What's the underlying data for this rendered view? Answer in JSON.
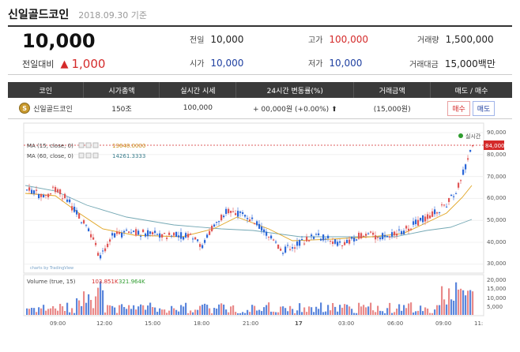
{
  "header": {
    "coin_name": "신일골드코인",
    "date": "2018.09.30 기준"
  },
  "price": {
    "current": "10,000",
    "change_label": "전일대비",
    "change_value": "1,000"
  },
  "stats": [
    {
      "label": "전일",
      "value": "10,000",
      "color": "plain"
    },
    {
      "label": "고가",
      "value": "100,000",
      "color": "red"
    },
    {
      "label": "거래량",
      "value": "1,500,000",
      "color": "plain"
    },
    {
      "label": "시가",
      "value": "10,000",
      "color": "blue"
    },
    {
      "label": "저가",
      "value": "10,000",
      "color": "blue"
    },
    {
      "label": "거래대금",
      "value": "15,000백만",
      "color": "plain"
    }
  ],
  "table": {
    "headers": [
      "코인",
      "시가총액",
      "실시간 시세",
      "24시간 변동률(%)",
      "거래금액",
      "매도 / 매수"
    ],
    "row": {
      "coin": "신일골드코인",
      "market_cap": "150조",
      "realtime": "100,000",
      "change": "+ 00,000원 (+0.00%)",
      "volume": "(15,000원)",
      "buy": "매수",
      "sell": "매도"
    }
  },
  "chart": {
    "legend_realtime": "실시간",
    "current_tag": "84,000",
    "ma15_label": "MA (15, close, 0)",
    "ma15_value": "13648.0000",
    "ma60_label": "MA (60, close, 0)",
    "ma60_value": "14261.3333",
    "volume_label": "Volume (true, 15)",
    "volume_v1": "103.851K",
    "volume_v2": "321.964K",
    "watermark": "charts by TradingView",
    "y_ticks": [
      "90,000",
      "80,000",
      "70,000",
      "60,000",
      "50,000",
      "40,000",
      "30,000"
    ],
    "vol_ticks": [
      "20,000",
      "15,000",
      "10,000",
      "5,000"
    ],
    "x_ticks": [
      "09:00",
      "12:00",
      "15:00",
      "18:00",
      "21:00",
      "17",
      "03:00",
      "06:00",
      "09:00",
      "11:"
    ]
  },
  "colors": {
    "up": "#e05555",
    "down": "#2a66d8",
    "red": "#d42a2a",
    "blue": "#1e3fa0"
  }
}
